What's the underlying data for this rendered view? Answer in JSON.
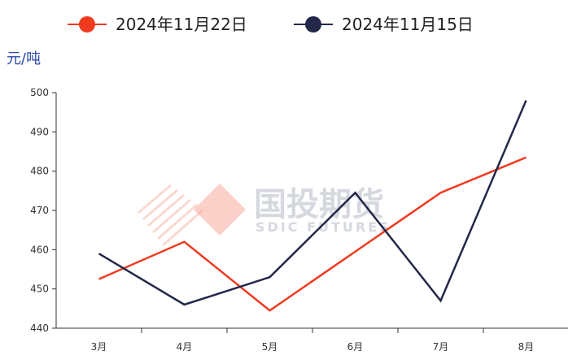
{
  "watermark": {
    "name_cn": "国投期货",
    "name_en": "SDIC FUTURES"
  },
  "chart_data": {
    "type": "line",
    "title": "",
    "xlabel": "",
    "ylabel": "元/吨",
    "categories": [
      "3月",
      "4月",
      "5月",
      "6月",
      "7月",
      "8月"
    ],
    "ylim": [
      440,
      500
    ],
    "yticks": [
      440,
      450,
      460,
      470,
      480,
      490,
      500
    ],
    "legend_position": "top",
    "grid": false,
    "series": [
      {
        "name": "2024年11月22日",
        "color": "#f03a1f",
        "values": [
          452.5,
          462,
          444.5,
          459.5,
          474.5,
          483.5
        ]
      },
      {
        "name": "2024年11月15日",
        "color": "#23284a",
        "values": [
          459,
          446,
          453,
          474.5,
          447,
          498
        ]
      }
    ]
  }
}
